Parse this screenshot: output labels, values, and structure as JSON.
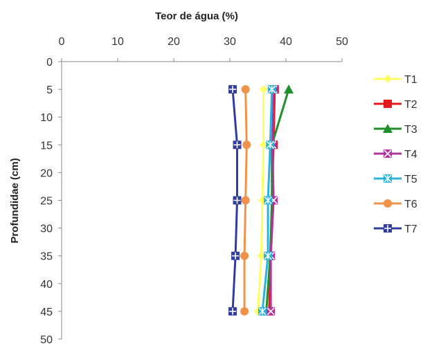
{
  "chart_data": {
    "type": "line",
    "title": "",
    "xlabel": "Teor de água (%)",
    "ylabel": "Profundidae (cm)",
    "x_axis_position": "top",
    "y_axis_reversed": true,
    "xlim": [
      0,
      50
    ],
    "ylim": [
      0,
      50
    ],
    "x_ticks": [
      "0",
      "10",
      "20",
      "30",
      "40",
      "50"
    ],
    "y_ticks": [
      "0",
      "5",
      "10",
      "15",
      "20",
      "25",
      "30",
      "35",
      "40",
      "45",
      "50"
    ],
    "grid": false,
    "legend_position": "right",
    "depths": [
      5,
      15,
      25,
      35,
      45
    ],
    "series": [
      {
        "name": "T1",
        "color": "#ffff66",
        "marker": "diamond",
        "x": [
          36,
          36,
          35.8,
          35.6,
          35
        ]
      },
      {
        "name": "T2",
        "color": "#e41a1c",
        "marker": "square",
        "x": [
          38,
          37.8,
          37.5,
          37.3,
          37
        ]
      },
      {
        "name": "T3",
        "color": "#1f8f2a",
        "marker": "triangle",
        "x": [
          40.5,
          37.5,
          37.5,
          37.2,
          36.5
        ]
      },
      {
        "name": "T4",
        "color": "#b4339b",
        "marker": "x-box",
        "x": [
          37.8,
          37.6,
          37.8,
          37.3,
          37.3
        ]
      },
      {
        "name": "T5",
        "color": "#2bb3d9",
        "marker": "asterisk",
        "x": [
          37.5,
          37.2,
          36.8,
          36.8,
          35.8
        ]
      },
      {
        "name": "T6",
        "color": "#f0924a",
        "marker": "circle",
        "x": [
          32.8,
          33,
          32.8,
          32.6,
          32.6
        ]
      },
      {
        "name": "T7",
        "color": "#323c9e",
        "marker": "cross-box",
        "x": [
          30.5,
          31.3,
          31.3,
          31,
          30.5
        ]
      }
    ]
  }
}
